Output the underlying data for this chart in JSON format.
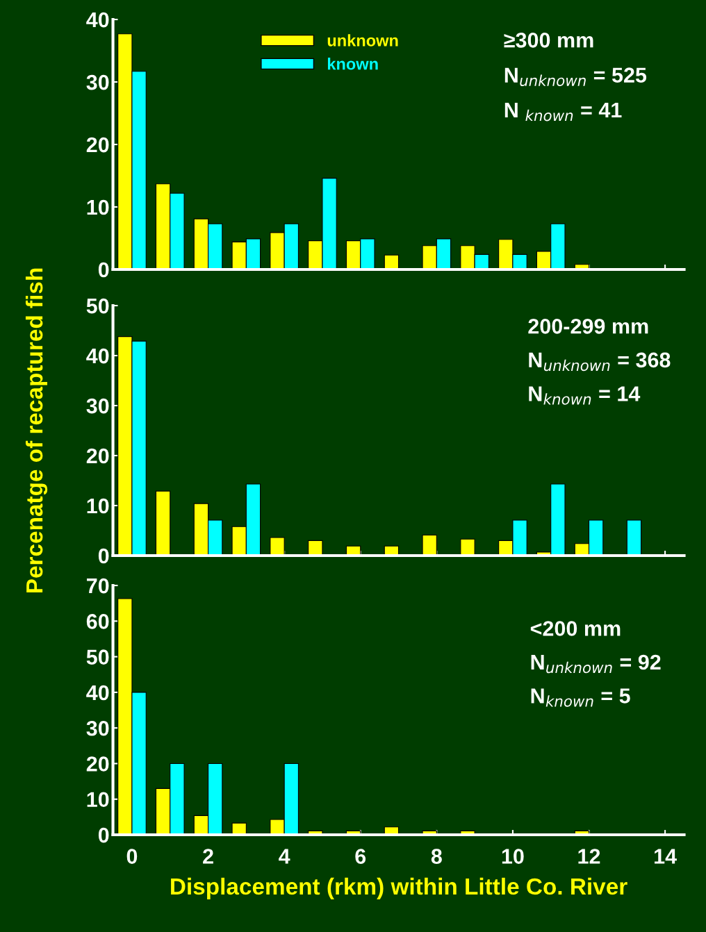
{
  "chart_data": [
    {
      "type": "bar",
      "x": [
        0,
        1,
        2,
        3,
        4,
        5,
        6,
        7,
        8,
        9,
        10,
        11,
        12,
        13,
        14
      ],
      "series": [
        {
          "name": "unknown",
          "color": "#ffff00",
          "values": [
            37.7,
            13.7,
            8.1,
            4.4,
            5.9,
            4.6,
            4.6,
            2.3,
            3.8,
            3.8,
            4.8,
            2.9,
            0.8,
            0,
            0
          ]
        },
        {
          "name": "known",
          "color": "#00ffff",
          "values": [
            31.7,
            12.2,
            7.3,
            4.9,
            7.3,
            14.6,
            4.9,
            0,
            4.9,
            2.4,
            2.4,
            7.3,
            0,
            0,
            0
          ]
        }
      ],
      "xlim": [
        -0.5,
        14.5
      ],
      "xticks": [
        0,
        2,
        4,
        6,
        8,
        10,
        12,
        14
      ],
      "ylim": [
        0,
        40
      ],
      "yticks": [
        0,
        10,
        20,
        30,
        40
      ],
      "tick_labels": "y",
      "legend": "top",
      "annotations": [
        "≥300 mm",
        "N$_{unknown}$ = 525",
        "N $_{known}$ = 41"
      ]
    },
    {
      "type": "bar",
      "x": [
        0,
        1,
        2,
        3,
        4,
        5,
        6,
        7,
        8,
        9,
        10,
        11,
        12,
        13,
        14
      ],
      "series": [
        {
          "color": "#ffff00",
          "values": [
            43.8,
            12.9,
            10.4,
            5.8,
            3.6,
            3.0,
            1.9,
            1.9,
            4.1,
            3.3,
            3.0,
            0.7,
            2.4,
            0,
            0
          ]
        },
        {
          "color": "#00ffff",
          "values": [
            42.9,
            0,
            7.1,
            14.3,
            0,
            0,
            0,
            0,
            0,
            0,
            7.1,
            14.3,
            7.1,
            7.1,
            0
          ]
        }
      ],
      "xlim": [
        -0.5,
        14.5
      ],
      "xticks": [
        0,
        2,
        4,
        6,
        8,
        10,
        12,
        14
      ],
      "ylim": [
        0,
        50
      ],
      "yticks": [
        0,
        10,
        20,
        30,
        40,
        50
      ],
      "tick_labels": "y",
      "ylabel": "Percenatge of recaptured fish",
      "annotations": [
        "200-299 mm",
        "N$_{unknown}$ = 368",
        "N$_{known}$ = 14"
      ]
    },
    {
      "type": "bar",
      "x": [
        0,
        1,
        2,
        3,
        4,
        5,
        6,
        7,
        8,
        9,
        10,
        11,
        12,
        13,
        14
      ],
      "series": [
        {
          "color": "#ffff00",
          "values": [
            66.3,
            13.0,
            5.4,
            3.3,
            4.3,
            1.1,
            1.1,
            2.2,
            1.1,
            1.1,
            0,
            0,
            1.1,
            0,
            0
          ]
        },
        {
          "color": "#00ffff",
          "values": [
            40,
            20,
            20,
            0,
            20,
            0,
            0,
            0,
            0,
            0,
            0,
            0,
            0,
            0,
            0
          ]
        }
      ],
      "xlim": [
        -0.5,
        14.5
      ],
      "xticks": [
        0,
        2,
        4,
        6,
        8,
        10,
        12,
        14
      ],
      "ylim": [
        0,
        70
      ],
      "yticks": [
        0,
        10,
        20,
        30,
        40,
        50,
        60,
        70
      ],
      "xlabel": "Displacement (rkm) within Little Co. River",
      "annotations": [
        "<200 mm",
        "N$_{unknown}$ = 92",
        "N$_{known}$ = 5"
      ]
    }
  ]
}
